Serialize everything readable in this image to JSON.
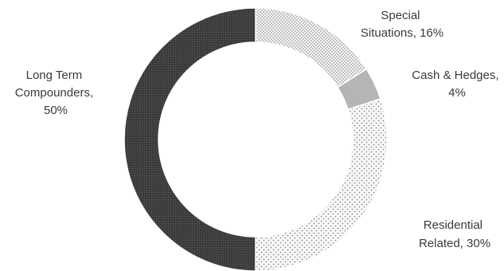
{
  "chart_data": {
    "type": "pie",
    "style": "donut",
    "slices": [
      {
        "label_lines": [
          "Special",
          "Situations, 16%"
        ],
        "value": 16,
        "pattern": "sparse-dots"
      },
      {
        "label_lines": [
          "Cash & Hedges,",
          "4%"
        ],
        "value": 4,
        "pattern": "solid-gray"
      },
      {
        "label_lines": [
          "Residential",
          "Related, 30%"
        ],
        "value": 30,
        "pattern": "diagonal-dots"
      },
      {
        "label_lines": [
          "Long Term",
          "Compounders,",
          "50%"
        ],
        "value": 50,
        "pattern": "dense-dark-dots"
      }
    ],
    "colors": {
      "special_situations": "#e6e6e6",
      "cash_hedges": "#b5b5b5",
      "residential_related": "#ececec",
      "long_term_compounders": "#3d3d3d",
      "separator": "#ffffff",
      "label_text": "#3a3a3a"
    }
  }
}
